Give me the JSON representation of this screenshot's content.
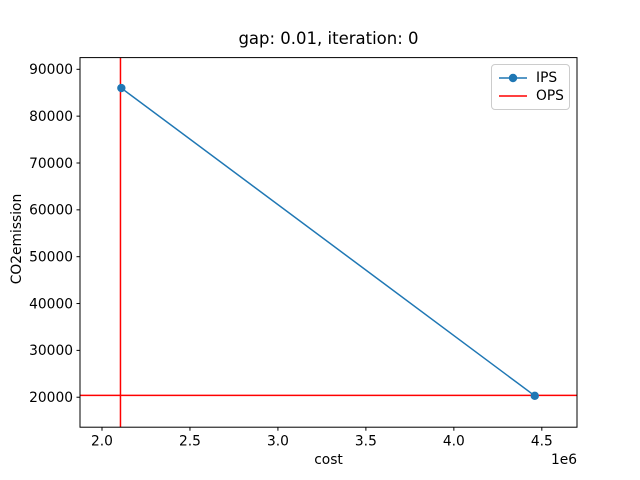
{
  "chart_data": {
    "type": "line",
    "title": "gap: 0.01, iteration: 0",
    "xlabel": "cost",
    "ylabel": "CO2emission",
    "x_offset_label": "1e6",
    "xlim": [
      1875000,
      4700000
    ],
    "ylim": [
      13600,
      92500
    ],
    "x_ticks": [
      2000000,
      2500000,
      3000000,
      3500000,
      4000000,
      4500000
    ],
    "x_tick_labels": [
      "2.0",
      "2.5",
      "3.0",
      "3.5",
      "4.0",
      "4.5"
    ],
    "y_ticks": [
      20000,
      30000,
      40000,
      50000,
      60000,
      70000,
      80000,
      90000
    ],
    "y_tick_labels": [
      "20000",
      "30000",
      "40000",
      "50000",
      "60000",
      "70000",
      "80000",
      "90000"
    ],
    "grid": false,
    "legend_position": "upper right",
    "series": [
      {
        "name": "IPS",
        "kind": "line-markers",
        "color": "#1f77b4",
        "points": [
          [
            2110000,
            86000
          ],
          [
            4460000,
            20300
          ]
        ]
      },
      {
        "name": "OPS",
        "kind": "crosshair",
        "color": "#ff0000",
        "vline_x": 2105000,
        "hline_y": 20400
      }
    ]
  }
}
